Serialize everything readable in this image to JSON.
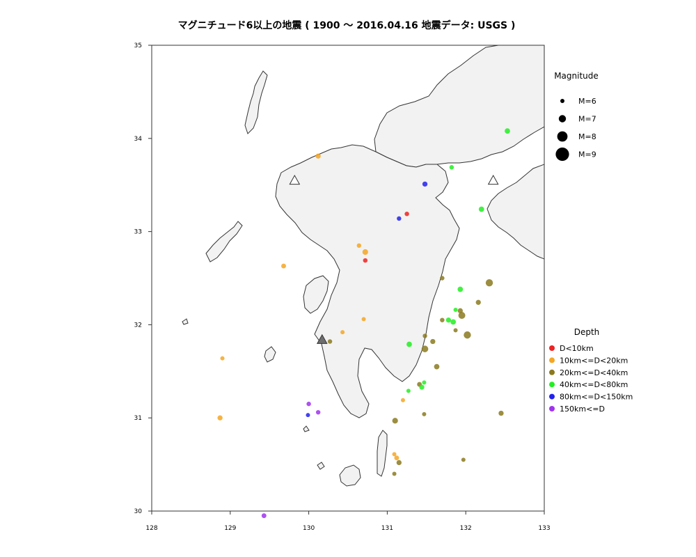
{
  "chart_data": {
    "type": "scatter",
    "title": "マグニチュード6以上の地震 ( 1900 〜 2016.04.16  地震データ: USGS )",
    "xlabel": "",
    "ylabel": "",
    "xlim": [
      128,
      133
    ],
    "ylim": [
      30,
      35
    ],
    "x_ticks": [
      128,
      129,
      130,
      131,
      132,
      133
    ],
    "y_ticks": [
      30,
      31,
      32,
      33,
      34,
      35
    ],
    "grid": false,
    "basemap": "Kyushu coastline outline",
    "magnitude_legend": {
      "title": "Magnitude",
      "position": "top-right",
      "items": [
        {
          "label": "M=6",
          "magnitude": 6
        },
        {
          "label": "M=7",
          "magnitude": 7
        },
        {
          "label": "M=8",
          "magnitude": 8
        },
        {
          "label": "M=9",
          "magnitude": 9
        }
      ]
    },
    "depth_legend": {
      "title": "Depth",
      "position": "right",
      "items": [
        {
          "label": "D<10km",
          "color": "#ee2222"
        },
        {
          "label": "10km<=D<20km",
          "color": "#f5a623"
        },
        {
          "label": "20km<=D<40km",
          "color": "#8b7a1e"
        },
        {
          "label": "40km<=D<80km",
          "color": "#22ee22"
        },
        {
          "label": "80km<=D<150km",
          "color": "#2222ee"
        },
        {
          "label": "150km<=D",
          "color": "#a033ee"
        }
      ]
    },
    "volcanoes": [
      {
        "lon": 130.17,
        "lat": 31.84,
        "color": "#6e6e6e"
      },
      {
        "lon": 129.82,
        "lat": 33.55,
        "color": "#ffffff"
      },
      {
        "lon": 132.35,
        "lat": 33.55,
        "color": "#ffffff"
      }
    ],
    "series": [
      {
        "name": "D<10km",
        "color": "#ee2222",
        "points": [
          {
            "lon": 131.25,
            "lat": 33.19,
            "mag": 6.1
          },
          {
            "lon": 130.72,
            "lat": 32.69,
            "mag": 6.1
          }
        ]
      },
      {
        "name": "10km<=D<20km",
        "color": "#f5a623",
        "points": [
          {
            "lon": 130.12,
            "lat": 33.81,
            "mag": 6.3
          },
          {
            "lon": 130.64,
            "lat": 32.85,
            "mag": 6.1
          },
          {
            "lon": 130.72,
            "lat": 32.78,
            "mag": 6.5
          },
          {
            "lon": 129.68,
            "lat": 32.63,
            "mag": 6.2
          },
          {
            "lon": 130.7,
            "lat": 32.06,
            "mag": 6.0
          },
          {
            "lon": 130.43,
            "lat": 31.92,
            "mag": 6.0
          },
          {
            "lon": 128.9,
            "lat": 31.64,
            "mag": 6.0
          },
          {
            "lon": 128.87,
            "lat": 31.0,
            "mag": 6.3
          },
          {
            "lon": 131.2,
            "lat": 31.19,
            "mag": 6.0
          },
          {
            "lon": 131.09,
            "lat": 30.61,
            "mag": 6.0
          },
          {
            "lon": 131.12,
            "lat": 30.57,
            "mag": 6.2
          }
        ]
      },
      {
        "name": "20km<=D<40km",
        "color": "#8b7a1e",
        "points": [
          {
            "lon": 131.7,
            "lat": 32.5,
            "mag": 6.1
          },
          {
            "lon": 132.3,
            "lat": 32.45,
            "mag": 7.0
          },
          {
            "lon": 132.16,
            "lat": 32.24,
            "mag": 6.3
          },
          {
            "lon": 131.93,
            "lat": 32.15,
            "mag": 6.3
          },
          {
            "lon": 131.7,
            "lat": 32.05,
            "mag": 6.1
          },
          {
            "lon": 131.95,
            "lat": 32.1,
            "mag": 6.9
          },
          {
            "lon": 131.87,
            "lat": 31.94,
            "mag": 6.0
          },
          {
            "lon": 132.02,
            "lat": 31.89,
            "mag": 7.0
          },
          {
            "lon": 131.48,
            "lat": 31.88,
            "mag": 6.1
          },
          {
            "lon": 131.58,
            "lat": 31.82,
            "mag": 6.3
          },
          {
            "lon": 131.48,
            "lat": 31.74,
            "mag": 6.8
          },
          {
            "lon": 130.27,
            "lat": 31.82,
            "mag": 6.1
          },
          {
            "lon": 131.63,
            "lat": 31.55,
            "mag": 6.4
          },
          {
            "lon": 131.41,
            "lat": 31.36,
            "mag": 6.2
          },
          {
            "lon": 131.47,
            "lat": 31.04,
            "mag": 6.0
          },
          {
            "lon": 131.1,
            "lat": 30.97,
            "mag": 6.5
          },
          {
            "lon": 132.45,
            "lat": 31.05,
            "mag": 6.3
          },
          {
            "lon": 131.15,
            "lat": 30.52,
            "mag": 6.3
          },
          {
            "lon": 131.97,
            "lat": 30.55,
            "mag": 6.0
          },
          {
            "lon": 131.09,
            "lat": 30.4,
            "mag": 6.0
          }
        ]
      },
      {
        "name": "40km<=D<80km",
        "color": "#22ee22",
        "points": [
          {
            "lon": 132.53,
            "lat": 34.08,
            "mag": 6.4
          },
          {
            "lon": 131.82,
            "lat": 33.69,
            "mag": 6.1
          },
          {
            "lon": 132.2,
            "lat": 33.24,
            "mag": 6.4
          },
          {
            "lon": 131.93,
            "lat": 32.38,
            "mag": 6.4
          },
          {
            "lon": 131.87,
            "lat": 32.16,
            "mag": 6.0
          },
          {
            "lon": 131.78,
            "lat": 32.05,
            "mag": 6.3
          },
          {
            "lon": 131.84,
            "lat": 32.03,
            "mag": 6.4
          },
          {
            "lon": 131.28,
            "lat": 31.79,
            "mag": 6.4
          },
          {
            "lon": 131.47,
            "lat": 31.38,
            "mag": 6.0
          },
          {
            "lon": 131.44,
            "lat": 31.33,
            "mag": 6.3
          },
          {
            "lon": 131.27,
            "lat": 31.29,
            "mag": 6.0
          }
        ]
      },
      {
        "name": "80km<=D<150km",
        "color": "#2222ee",
        "points": [
          {
            "lon": 131.48,
            "lat": 33.51,
            "mag": 6.3
          },
          {
            "lon": 131.15,
            "lat": 33.14,
            "mag": 6.1
          },
          {
            "lon": 129.99,
            "lat": 31.03,
            "mag": 6.0
          }
        ]
      },
      {
        "name": "150km<=D",
        "color": "#a033ee",
        "points": [
          {
            "lon": 130.0,
            "lat": 31.15,
            "mag": 6.1
          },
          {
            "lon": 130.12,
            "lat": 31.06,
            "mag": 6.1
          },
          {
            "lon": 129.43,
            "lat": 29.95,
            "mag": 6.2
          }
        ]
      }
    ]
  }
}
